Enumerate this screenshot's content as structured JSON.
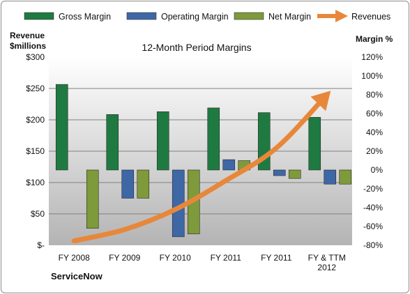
{
  "chart_data": {
    "type": "bar",
    "title": "12-Month Period Margins",
    "categories": [
      [
        "FY 2008"
      ],
      [
        "FY 2009"
      ],
      [
        "FY 2010"
      ],
      [
        "FY 2011"
      ],
      [
        "FY 2011"
      ],
      [
        "FY & TTM",
        "2012"
      ]
    ],
    "series": [
      {
        "name": "Gross Margin",
        "axis": "right",
        "type": "bar",
        "values": [
          91,
          59,
          62,
          66,
          61,
          56
        ]
      },
      {
        "name": "Operating Margin",
        "axis": "right",
        "type": "bar",
        "values": [
          0,
          -30,
          -71,
          11,
          -6,
          -15
        ]
      },
      {
        "name": "Net Margin",
        "axis": "right",
        "type": "bar",
        "values": [
          -62,
          -30,
          -68,
          10,
          -9,
          -15
        ]
      },
      {
        "name": "Revenues",
        "axis": "left",
        "type": "arrow-line",
        "values": [
          7,
          25,
          57,
          103,
          155,
          240
        ]
      }
    ],
    "left_axis": {
      "label_lines": [
        "Revenue",
        "$millions"
      ],
      "ylim": [
        0,
        300
      ],
      "ticks": [
        0,
        50,
        100,
        150,
        200,
        250,
        300
      ],
      "tick_labels": [
        "$-",
        "$50",
        "$100",
        "$150",
        "$200",
        "$250",
        "$300"
      ]
    },
    "right_axis": {
      "label": "Margin %",
      "ylim": [
        -80,
        120
      ],
      "ticks": [
        -80,
        -60,
        -40,
        -20,
        0,
        20,
        40,
        60,
        80,
        100,
        120
      ],
      "tick_labels": [
        "-80%",
        "-60%",
        "-40%",
        "-20%",
        "0%",
        "20%",
        "40%",
        "60%",
        "80%",
        "100%",
        "120%"
      ]
    },
    "grid": true,
    "legend_position": "top",
    "colors": {
      "Gross Margin": "#1f7a42",
      "Operating Margin": "#3e67a6",
      "Net Margin": "#7f9a3a",
      "Revenues": "#e8873a",
      "plot_background": "#bebebe"
    }
  },
  "footer": {
    "company": "ServiceNow"
  }
}
